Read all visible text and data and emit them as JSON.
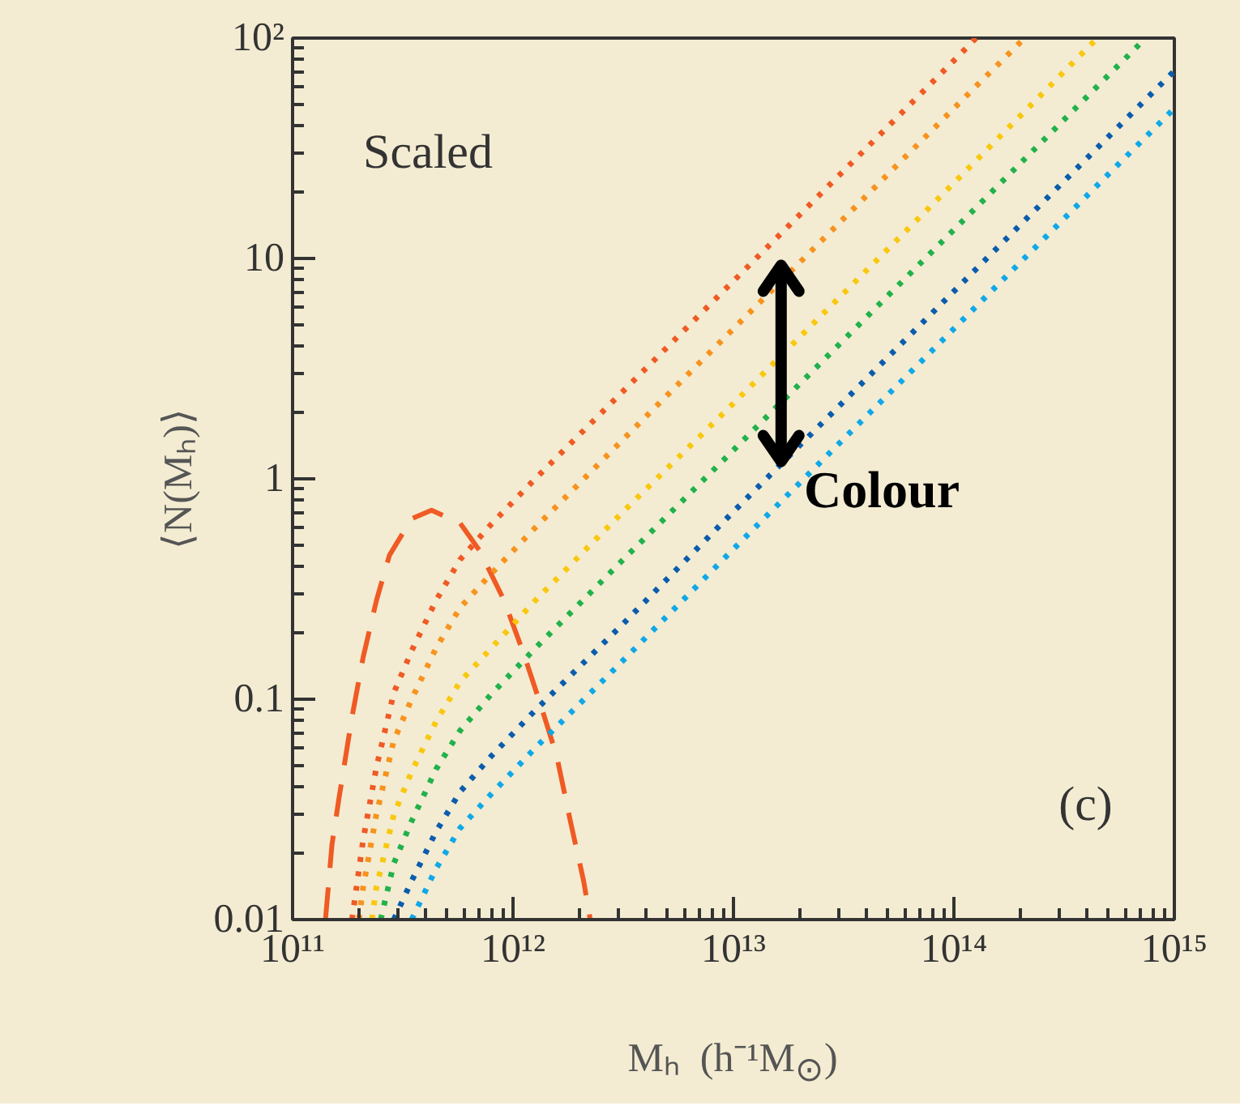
{
  "chart_data": {
    "type": "line",
    "xlabel": "Mₕ  (h⁻¹M$_{⊙}$)",
    "ylabel": "⟨N(Mₕ)⟩",
    "log": "xy",
    "grid": false,
    "xlim": [
      100000000000.0,
      1000000000000000.0
    ],
    "ylim": [
      0.01,
      100
    ],
    "xticks": [
      {
        "value": 100000000000.0,
        "label": "10¹¹"
      },
      {
        "value": 1000000000000.0,
        "label": "10¹²"
      },
      {
        "value": 10000000000000.0,
        "label": "10¹³"
      },
      {
        "value": 100000000000000.0,
        "label": "10¹⁴"
      },
      {
        "value": 1000000000000000.0,
        "label": "10¹⁵"
      }
    ],
    "yticks": [
      0.01,
      0.1,
      1,
      10,
      {
        "value": 100,
        "label": "10²"
      }
    ],
    "annotations": [
      "Scaled",
      "Colour",
      "(c)"
    ],
    "series": [
      {
        "color": "#f05a24",
        "line_style": "dashed",
        "x": [
          141000000000.0,
          151000000000.0,
          162000000000.0,
          186000000000.0,
          209000000000.0,
          240000000000.0,
          275000000000.0,
          347000000000.0,
          427000000000.0,
          575000000000.0,
          708000000000.0,
          912000000000.0,
          1120000000000.0,
          1350000000000.0,
          1580000000000.0,
          1820000000000.0,
          2090000000000.0,
          2240000000000.0
        ],
        "values": [
          0.01,
          0.022,
          0.035,
          0.083,
          0.155,
          0.28,
          0.45,
          0.66,
          0.72,
          0.63,
          0.47,
          0.28,
          0.16,
          0.091,
          0.055,
          0.028,
          0.015,
          0.01
        ]
      },
      {
        "color": "#f05a24",
        "line_style": "dotted",
        "x": [
          186000000000.0,
          209000000000.0,
          240000000000.0,
          288000000000.0,
          347000000000.0,
          447000000000.0,
          575000000000.0,
          794000000000.0,
          1260000000000.0,
          3160000000000.0,
          10000000000000.0,
          100000000000000.0,
          126000000000000.0
        ],
        "values": [
          0.01,
          0.023,
          0.049,
          0.107,
          0.166,
          0.28,
          0.43,
          0.62,
          1,
          2.5,
          7.9,
          79,
          100
        ]
      },
      {
        "color": "#f7931e",
        "line_style": "dotted",
        "x": [
          200000000000.0,
          209000000000.0,
          240000000000.0,
          288000000000.0,
          347000000000.0,
          447000000000.0,
          575000000000.0,
          794000000000.0,
          1260000000000.0,
          3160000000000.0,
          10000000000000.0,
          100000000000000.0,
          209000000000000.0
        ],
        "values": [
          0.01,
          0.014,
          0.03,
          0.065,
          0.1,
          0.17,
          0.26,
          0.37,
          0.6,
          1.51,
          4.8,
          48,
          100
        ]
      },
      {
        "color": "#f9c80e",
        "line_style": "dotted",
        "x": [
          229000000000.0,
          240000000000.0,
          288000000000.0,
          347000000000.0,
          447000000000.0,
          575000000000.0,
          794000000000.0,
          1260000000000.0,
          3160000000000.0,
          10000000000000.0,
          100000000000000.0,
          447000000000000.0
        ],
        "values": [
          0.01,
          0.014,
          0.03,
          0.047,
          0.079,
          0.12,
          0.17,
          0.28,
          0.71,
          2.2,
          22,
          100
        ]
      },
      {
        "color": "#22b14c",
        "line_style": "dotted",
        "x": [
          251000000000.0,
          288000000000.0,
          347000000000.0,
          447000000000.0,
          575000000000.0,
          794000000000.0,
          1260000000000.0,
          3160000000000.0,
          10000000000000.0,
          100000000000000.0,
          741000000000000.0
        ],
        "values": [
          0.01,
          0.018,
          0.028,
          0.048,
          0.072,
          0.105,
          0.17,
          0.43,
          1.35,
          13.5,
          100
        ]
      },
      {
        "color": "#0b5cad",
        "line_style": "dotted",
        "x": [
          288000000000.0,
          347000000000.0,
          447000000000.0,
          575000000000.0,
          794000000000.0,
          1260000000000.0,
          3160000000000.0,
          10000000000000.0,
          100000000000000.0,
          1000000000000000.0
        ],
        "values": [
          0.01,
          0.015,
          0.025,
          0.038,
          0.055,
          0.089,
          0.22,
          0.71,
          7.1,
          71
        ]
      },
      {
        "color": "#10a8e8",
        "line_style": "dotted",
        "x": [
          347000000000.0,
          447000000000.0,
          575000000000.0,
          794000000000.0,
          1260000000000.0,
          3160000000000.0,
          10000000000000.0,
          100000000000000.0,
          1000000000000000.0
        ],
        "values": [
          0.01,
          0.017,
          0.026,
          0.037,
          0.06,
          0.15,
          0.48,
          4.8,
          48
        ]
      }
    ]
  }
}
